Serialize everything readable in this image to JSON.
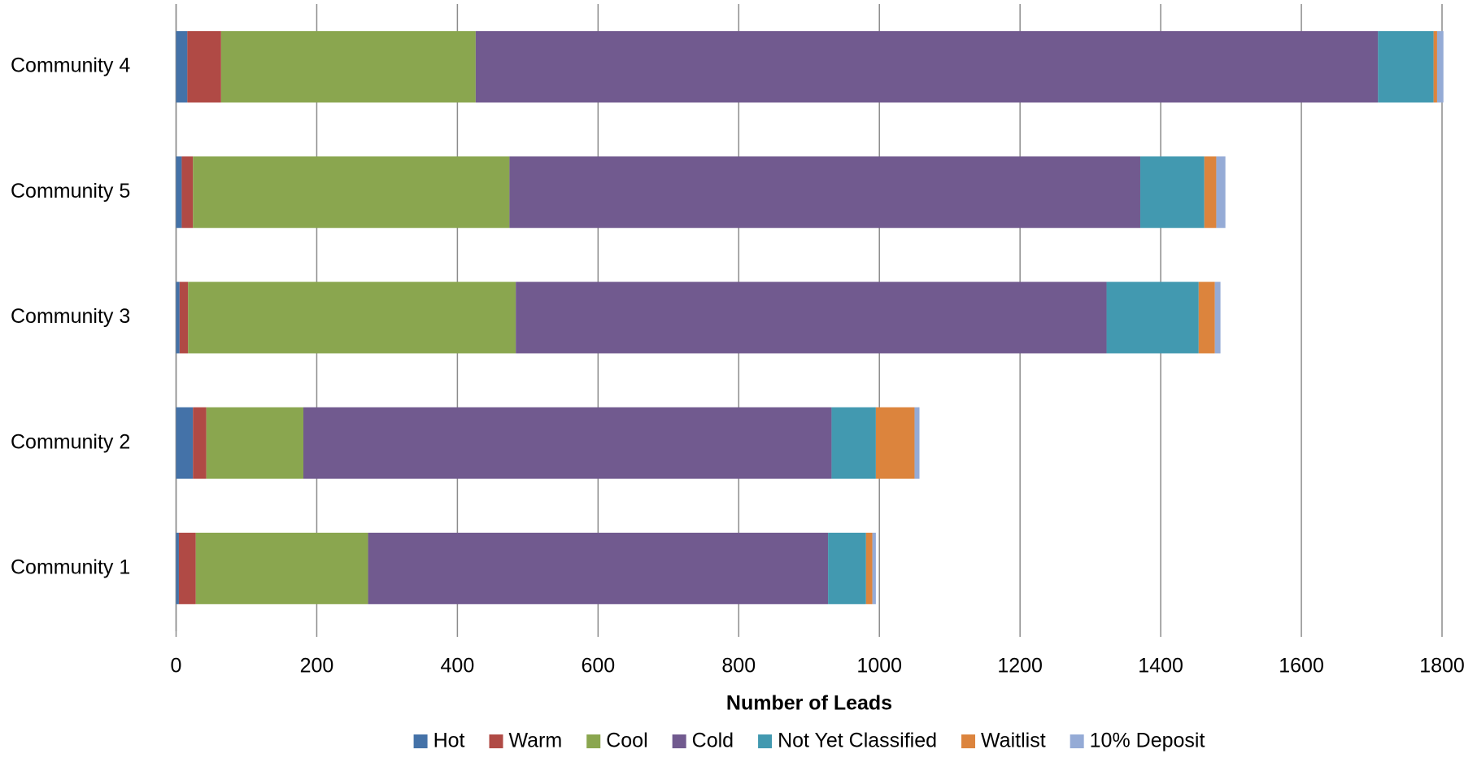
{
  "chart_data": {
    "type": "stacked-bar",
    "orientation": "horizontal",
    "x_label": "Number of Leads",
    "categories": [
      "Community 4",
      "Community 5",
      "Community 3",
      "Community 2",
      "Community 1"
    ],
    "series": [
      {
        "name": "Hot",
        "color": "#4472a8",
        "values": [
          16,
          8,
          5,
          24,
          4
        ]
      },
      {
        "name": "Warm",
        "color": "#b04a45",
        "values": [
          48,
          16,
          12,
          19,
          24
        ]
      },
      {
        "name": "Cool",
        "color": "#8aa64f",
        "values": [
          362,
          450,
          466,
          138,
          245
        ]
      },
      {
        "name": "Cold",
        "color": "#715a8f",
        "values": [
          1283,
          897,
          840,
          751,
          654
        ]
      },
      {
        "name": "Not Yet Classified",
        "color": "#4299b0",
        "values": [
          79,
          91,
          131,
          63,
          54
        ]
      },
      {
        "name": "Waitlist",
        "color": "#dc843d",
        "values": [
          5,
          17,
          23,
          55,
          9
        ]
      },
      {
        "name": "10% Deposit",
        "color": "#95abd6",
        "values": [
          9,
          13,
          8,
          7,
          5
        ]
      }
    ],
    "xlim": [
      0,
      1800
    ],
    "xticks": [
      0,
      200,
      400,
      600,
      800,
      1000,
      1200,
      1400,
      1600,
      1800
    ],
    "grid": true,
    "legend": "bottom"
  }
}
